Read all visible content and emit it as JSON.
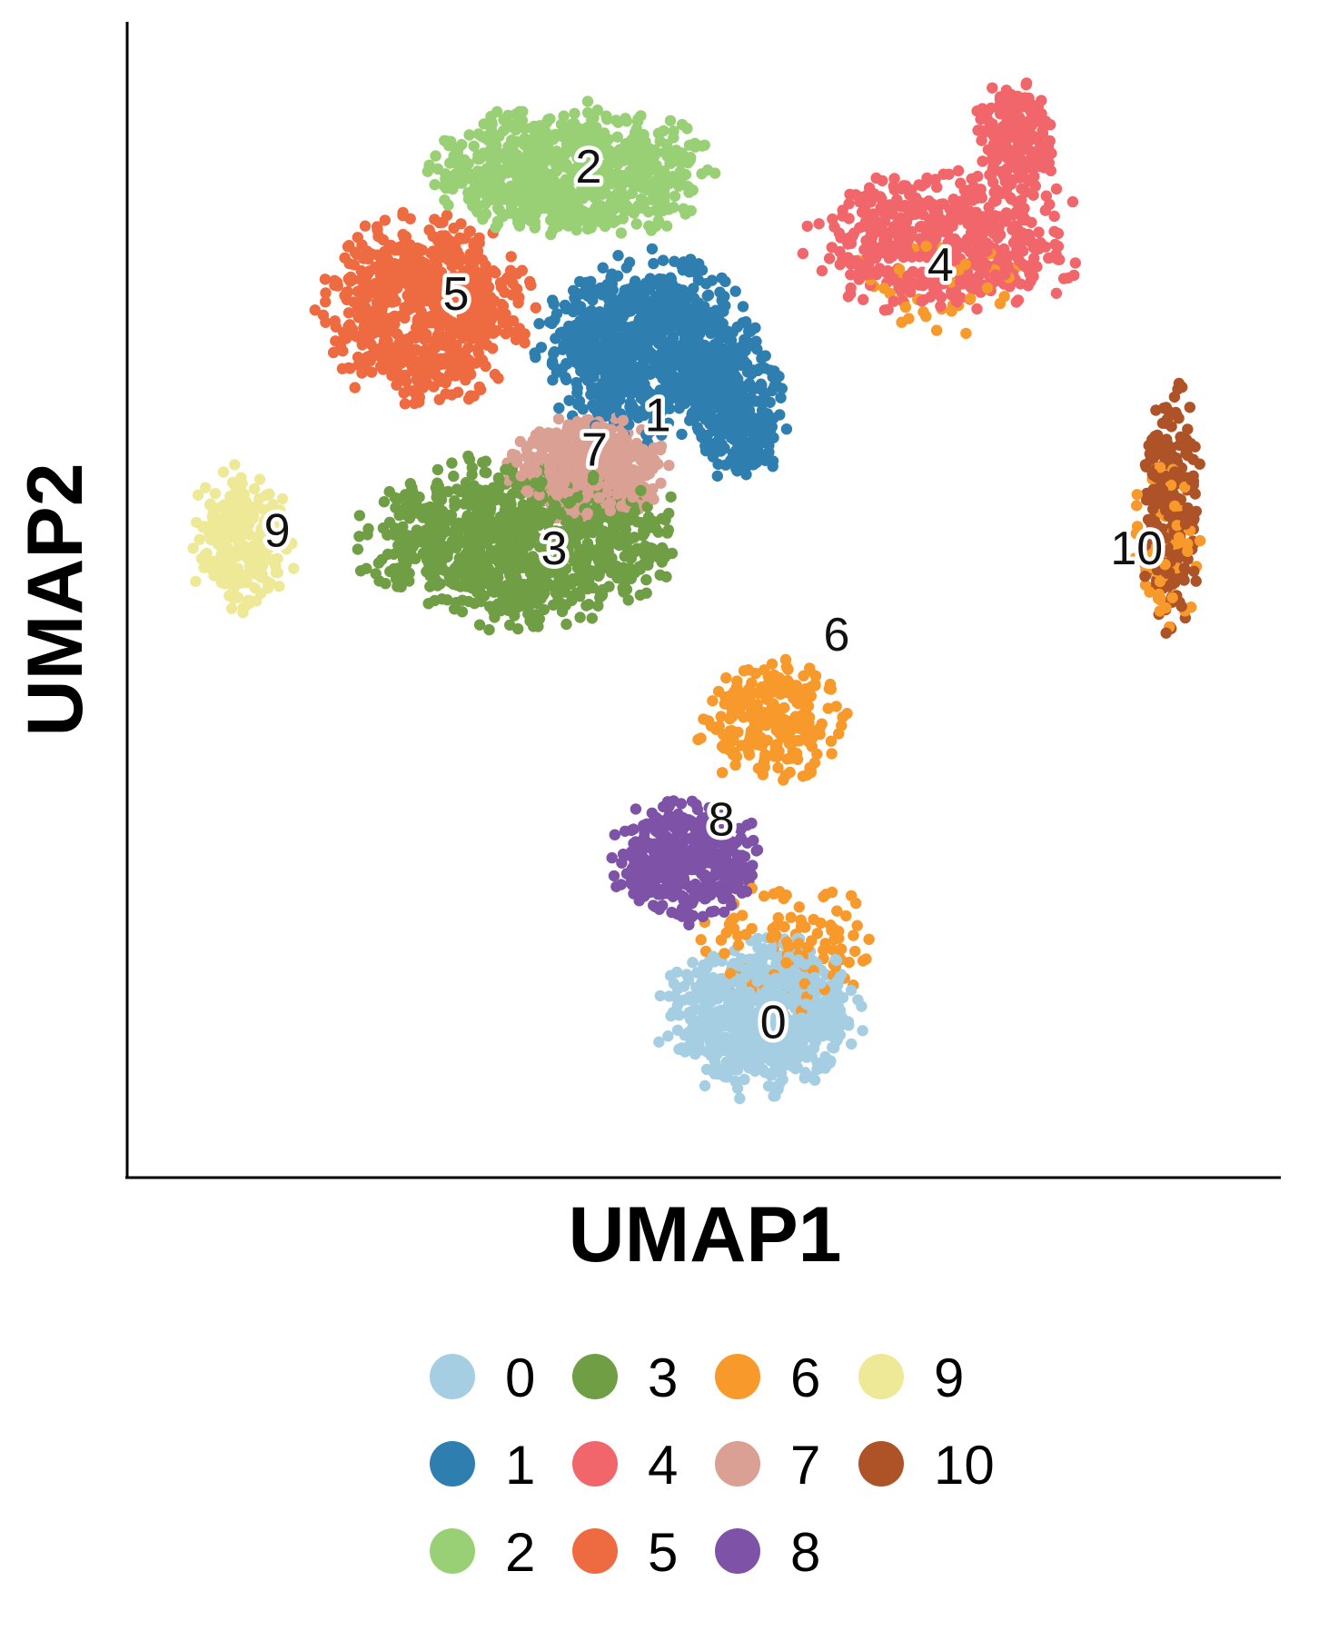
{
  "chart_data": {
    "type": "scatter",
    "title": "",
    "xlabel": "UMAP1",
    "ylabel": "UMAP2",
    "xlim": [
      0,
      100
    ],
    "ylim": [
      0,
      100
    ],
    "x_ticks": [],
    "y_ticks": [],
    "grid": false,
    "legend_position": "bottom",
    "series": [
      {
        "name": "0",
        "color": "#A6CEE3",
        "label_pos": [
          56.0,
          13.5
        ],
        "clusters": [
          {
            "center": [
              55.0,
              14.0
            ],
            "radius": [
              9.5,
              7.5
            ],
            "count": 720
          }
        ],
        "points": []
      },
      {
        "name": "1",
        "color": "#2E7FB0",
        "label_pos": [
          46.0,
          66.0
        ],
        "clusters": [
          {
            "center": [
              45.0,
              72.0
            ],
            "radius": [
              10.5,
              8.5
            ],
            "count": 900
          },
          {
            "center": [
              53.0,
              66.0
            ],
            "radius": [
              4.5,
              6.5
            ],
            "count": 260
          }
        ],
        "points": []
      },
      {
        "name": "2",
        "color": "#99D075",
        "label_pos": [
          40.0,
          87.5
        ],
        "clusters": [
          {
            "center": [
              38.5,
              87.0
            ],
            "radius": [
              13.5,
              6.5
            ],
            "count": 780
          }
        ],
        "points": []
      },
      {
        "name": "3",
        "color": "#6F9E45",
        "label_pos": [
          37.0,
          54.5
        ],
        "clusters": [
          {
            "center": [
              34.0,
              55.0
            ],
            "radius": [
              15.5,
              8.0
            ],
            "count": 950
          }
        ],
        "points": []
      },
      {
        "name": "4",
        "color": "#F0666A",
        "label_pos": [
          70.5,
          79.0
        ],
        "clusters": [
          {
            "center": [
              71.0,
              81.0
            ],
            "radius": [
              13.5,
              7.0
            ],
            "count": 560
          },
          {
            "center": [
              77.0,
              90.0
            ],
            "radius": [
              4.0,
              5.5
            ],
            "count": 200
          }
        ],
        "points": []
      },
      {
        "name": "5",
        "color": "#EE6B42",
        "label_pos": [
          28.5,
          76.5
        ],
        "clusters": [
          {
            "center": [
              26.0,
              75.0
            ],
            "radius": [
              10.0,
              9.0
            ],
            "count": 720
          }
        ],
        "points": []
      },
      {
        "name": "6",
        "color": "#F7992B",
        "label_pos": [
          61.5,
          47.0
        ],
        "clusters": [
          {
            "center": [
              56.0,
              39.5
            ],
            "radius": [
              7.0,
              6.0
            ],
            "count": 260
          },
          {
            "center": [
              57.0,
              20.0
            ],
            "radius": [
              9.0,
              6.5
            ],
            "count": 120
          },
          {
            "center": [
              70.5,
              77.0
            ],
            "radius": [
              9.0,
              5.0
            ],
            "count": 45
          },
          {
            "center": [
              90.0,
              55.0
            ],
            "radius": [
              3.5,
              9.0
            ],
            "count": 70
          }
        ],
        "points": []
      },
      {
        "name": "7",
        "color": "#D9A093",
        "label_pos": [
          40.5,
          63.0
        ],
        "clusters": [
          {
            "center": [
              40.0,
              61.5
            ],
            "radius": [
              8.0,
              5.0
            ],
            "count": 420
          }
        ],
        "points": []
      },
      {
        "name": "8",
        "color": "#7D52A7",
        "label_pos": [
          51.5,
          31.0
        ],
        "clusters": [
          {
            "center": [
              48.5,
              27.5
            ],
            "radius": [
              7.0,
              6.0
            ],
            "count": 420
          }
        ],
        "points": []
      },
      {
        "name": "9",
        "color": "#EEE997",
        "label_pos": [
          13.0,
          56.0
        ],
        "clusters": [
          {
            "center": [
              10.0,
              55.0
            ],
            "radius": [
              5.0,
              7.0
            ],
            "count": 240
          }
        ],
        "points": []
      },
      {
        "name": "10",
        "color": "#AD5327",
        "label_pos": [
          87.5,
          54.5
        ],
        "clusters": [
          {
            "center": [
              90.5,
              58.0
            ],
            "radius": [
              3.0,
              12.0
            ],
            "count": 230
          }
        ],
        "points": []
      }
    ]
  }
}
